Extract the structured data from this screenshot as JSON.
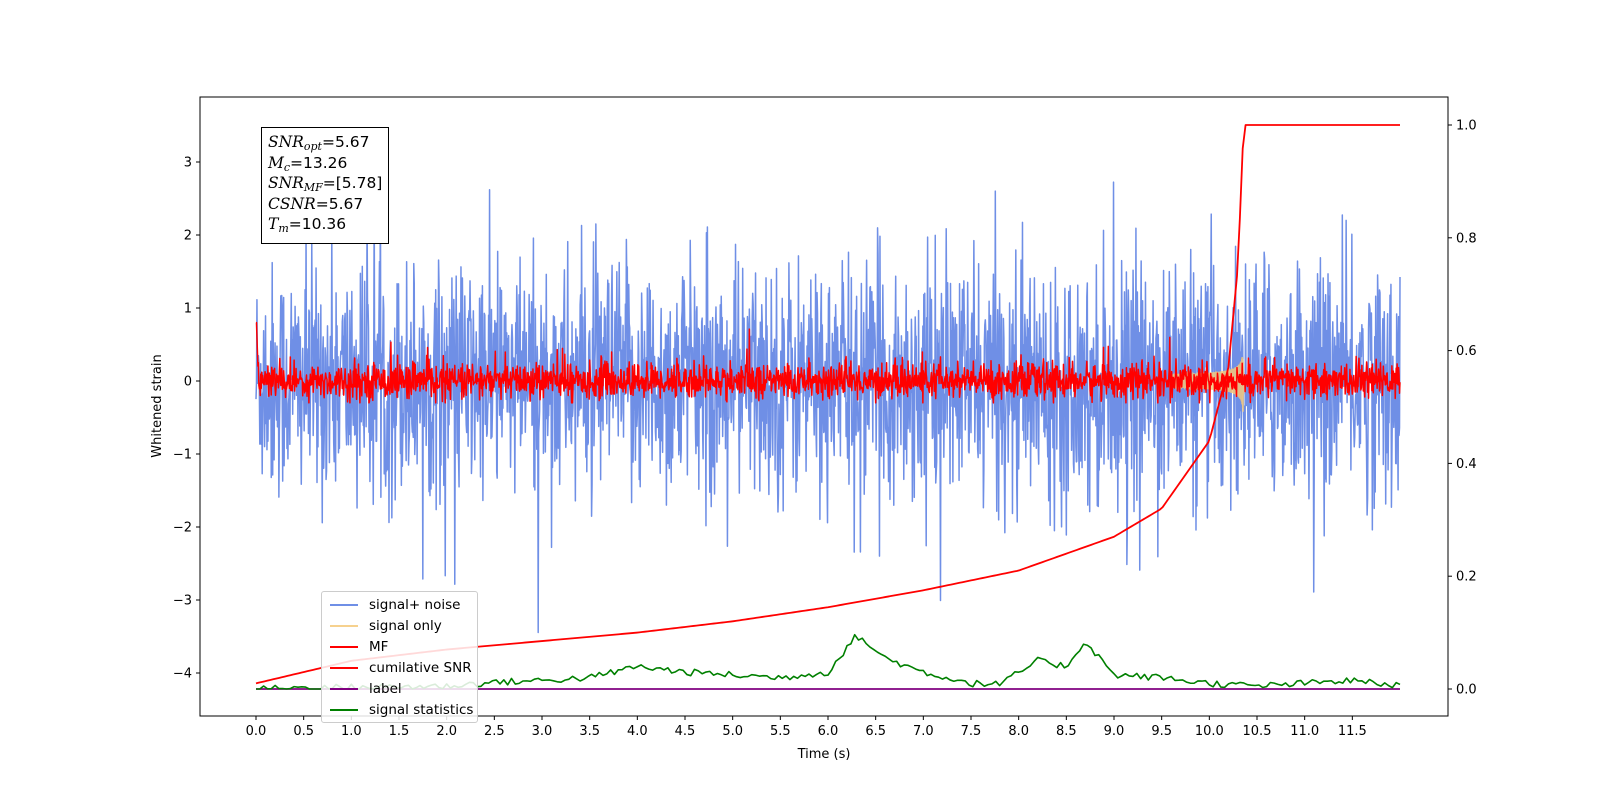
{
  "chart_data": {
    "type": "line",
    "xlabel": "Time (s)",
    "ylabel": "Whitened strain",
    "xlim": [
      -0.6,
      12.45
    ],
    "ylim": [
      -4.5,
      3.85
    ],
    "ylim_right": [
      -0.05,
      1.05
    ],
    "x_ticks": [
      "0.0",
      "0.5",
      "1.0",
      "1.5",
      "2.0",
      "2.5",
      "3.0",
      "3.5",
      "4.0",
      "4.5",
      "5.0",
      "5.5",
      "6.0",
      "6.5",
      "7.0",
      "7.5",
      "8.0",
      "8.5",
      "9.0",
      "9.5",
      "10.0",
      "10.5",
      "11.0",
      "11.5"
    ],
    "x_tick_values": [
      0,
      0.5,
      1,
      1.5,
      2,
      2.5,
      3,
      3.5,
      4,
      4.5,
      5,
      5.5,
      6,
      6.5,
      7,
      7.5,
      8,
      8.5,
      9,
      9.5,
      10,
      10.5,
      11,
      11.5
    ],
    "y_ticks": [
      "−4",
      "−3",
      "−2",
      "−1",
      "0",
      "1",
      "2",
      "3"
    ],
    "y_tick_values": [
      -4,
      -3,
      -2,
      -1,
      0,
      1,
      2,
      3
    ],
    "y_right_ticks": [
      "0.0",
      "0.2",
      "0.4",
      "0.6",
      "0.8",
      "1.0"
    ],
    "y_right_tick_values": [
      0,
      0.2,
      0.4,
      0.6,
      0.8,
      1.0
    ],
    "grid": false,
    "legend_position": "lower-left",
    "annotation": {
      "lines": [
        {
          "symbol": "SNR",
          "sub": "opt",
          "value": "=5.67"
        },
        {
          "symbol": "M",
          "sub": "c",
          "value": "=13.26"
        },
        {
          "symbol": "SNR",
          "sub": "MF",
          "value": "=[5.78]"
        },
        {
          "symbol": "CSNR",
          "sub": "",
          "value": "=5.67"
        },
        {
          "symbol": "T",
          "sub": "m",
          "value": "=10.36"
        }
      ]
    },
    "series": [
      {
        "name": "signal+ noise",
        "color": "#6f8fe6",
        "axis": "left",
        "description": "whitened noise, x 0-12, std ~0.8, spikes to about +3.5 / -4.1",
        "x_range": [
          0,
          12.0
        ],
        "amplitude": 0.8
      },
      {
        "name": "signal only",
        "color": "#f5c97a",
        "axis": "left",
        "description": "chirp growing to ~0.75 amplitude, ending at 10.36 s",
        "x_end": 10.36,
        "peak": 0.75
      },
      {
        "name": "MF",
        "color": "#ff0000",
        "axis": "left",
        "description": "matched-filter output ~ +/-0.3 around 0, starts at 1.0",
        "amplitude": 0.25
      },
      {
        "name": "cumilative SNR",
        "color": "#ff0000",
        "axis": "right",
        "x": [
          0,
          1,
          2,
          3,
          4,
          5,
          6,
          7,
          8,
          9,
          9.5,
          10,
          10.2,
          10.3,
          10.36,
          12.0
        ],
        "values": [
          0.01,
          0.05,
          0.07,
          0.085,
          0.1,
          0.12,
          0.145,
          0.175,
          0.21,
          0.27,
          0.32,
          0.44,
          0.57,
          0.75,
          1.0,
          1.0
        ]
      },
      {
        "name": "label",
        "color": "#800080",
        "axis": "right",
        "x": [
          0,
          12.0
        ],
        "values": [
          0.0,
          0.0
        ]
      },
      {
        "name": "signal statistics",
        "color": "#008000",
        "axis": "right",
        "x": [
          0,
          1,
          2,
          2.5,
          3,
          3.5,
          4,
          4.5,
          5,
          5.5,
          6,
          6.3,
          6.6,
          7,
          7.5,
          7.8,
          8.2,
          8.5,
          8.7,
          9,
          9.5,
          10,
          10.5,
          11,
          11.5,
          12.0
        ],
        "values": [
          0.001,
          0.003,
          0.005,
          0.012,
          0.015,
          0.02,
          0.04,
          0.03,
          0.025,
          0.02,
          0.03,
          0.095,
          0.055,
          0.03,
          0.01,
          0.008,
          0.05,
          0.04,
          0.085,
          0.025,
          0.02,
          0.01,
          0.005,
          0.01,
          0.015,
          0.005
        ]
      }
    ]
  }
}
